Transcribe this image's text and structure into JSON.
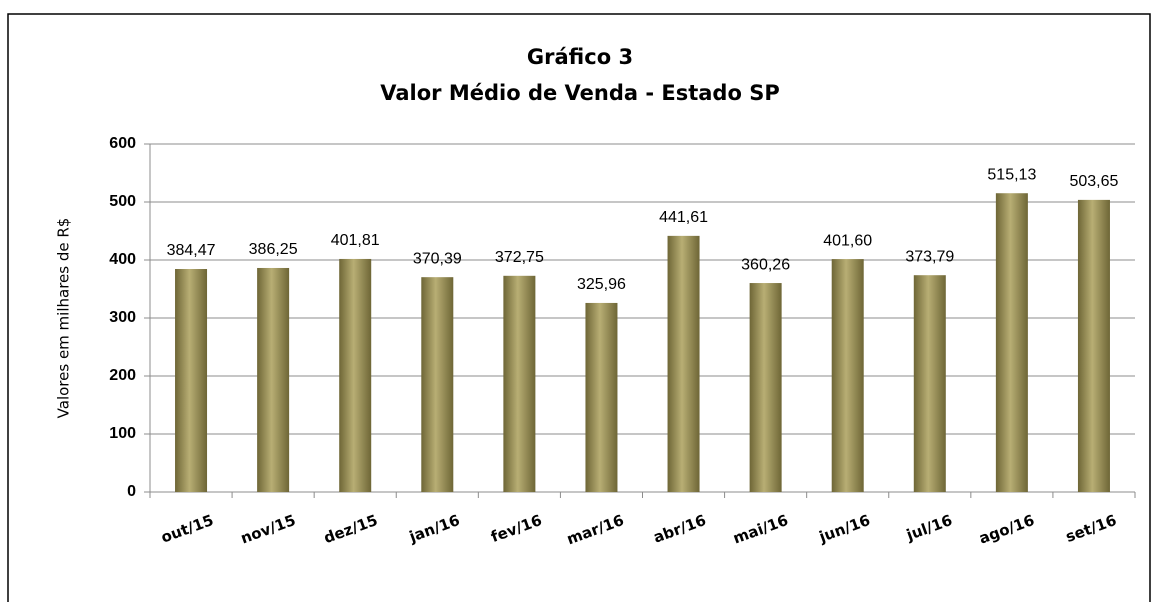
{
  "chart_data": {
    "type": "bar",
    "title": "Gráfico 3",
    "subtitle": "Valor Médio de Venda - Estado SP",
    "y_label": "Valores em milhares de R$",
    "categories": [
      "out/15",
      "nov/15",
      "dez/15",
      "jan/16",
      "fev/16",
      "mar/16",
      "abr/16",
      "mai/16",
      "jun/16",
      "jul/16",
      "ago/16",
      "set/16"
    ],
    "values": [
      384.47,
      386.25,
      401.81,
      370.39,
      372.75,
      325.96,
      441.61,
      360.26,
      401.6,
      373.79,
      515.13,
      503.65
    ],
    "value_labels": [
      "384,47",
      "386,25",
      "401,81",
      "370,39",
      "372,75",
      "325,96",
      "441,61",
      "360,26",
      "401,60",
      "373,79",
      "515,13",
      "503,65"
    ],
    "color": "#b8ae74",
    "ylim": [
      0,
      600
    ],
    "yticks": [
      0,
      100,
      200,
      300,
      400,
      500,
      600
    ],
    "grid": true
  }
}
